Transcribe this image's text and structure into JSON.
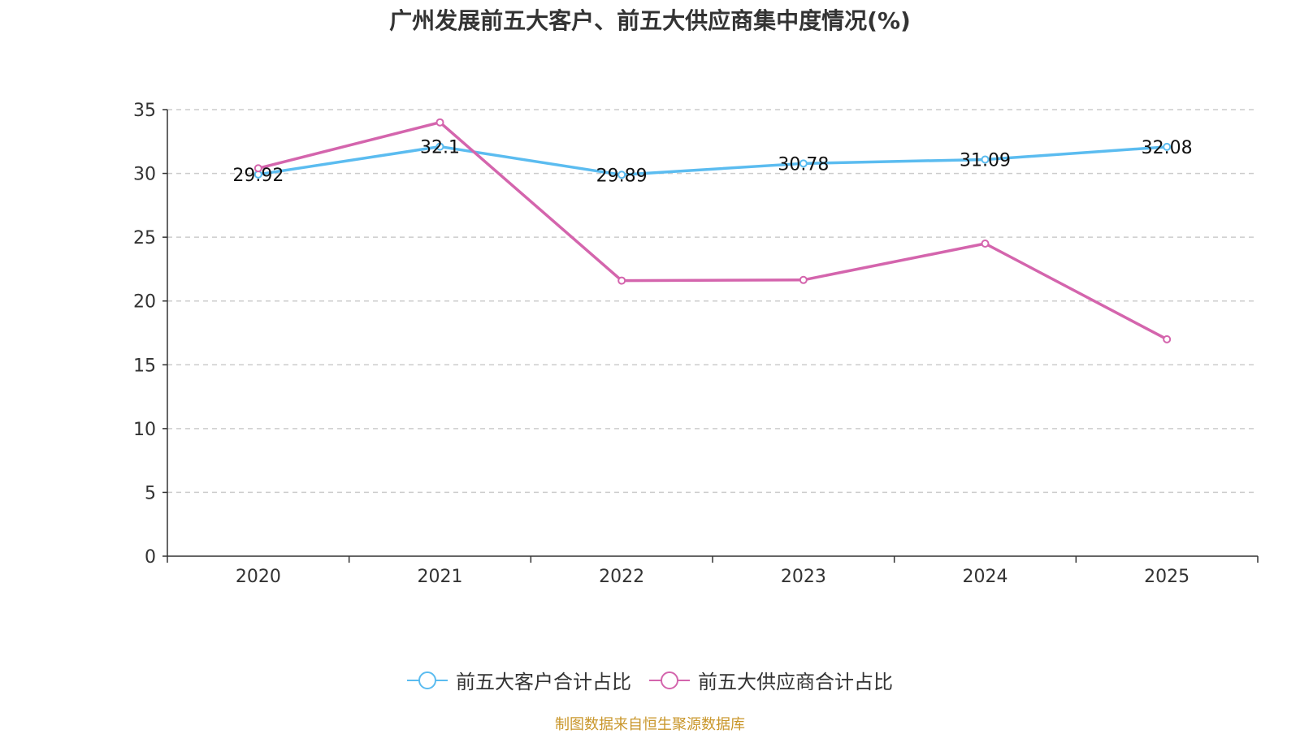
{
  "chart_data": {
    "type": "line",
    "title": "广州发展前五大客户、前五大供应商集中度情况(%)",
    "categories": [
      "2020",
      "2021",
      "2022",
      "2023",
      "2024",
      "2025"
    ],
    "ylim": [
      0,
      35
    ],
    "yticks": [
      0,
      5,
      10,
      15,
      20,
      25,
      30,
      35
    ],
    "grid": true,
    "legend_position": "bottom",
    "series": [
      {
        "name": "前五大客户合计占比",
        "color": "#5bbcf0",
        "values": [
          29.92,
          32.1,
          29.89,
          30.78,
          31.09,
          32.08
        ],
        "labels": [
          "29.92",
          "32.1",
          "29.89",
          "30.78",
          "31.09",
          "32.08"
        ],
        "show_labels": true
      },
      {
        "name": "前五大供应商合计占比",
        "color": "#d465ad",
        "values": [
          30.4,
          34.0,
          21.6,
          21.65,
          24.5,
          17.0
        ],
        "show_labels": false
      }
    ]
  },
  "source_note": "制图数据来自恒生聚源数据库",
  "source_color": "#c9962a"
}
